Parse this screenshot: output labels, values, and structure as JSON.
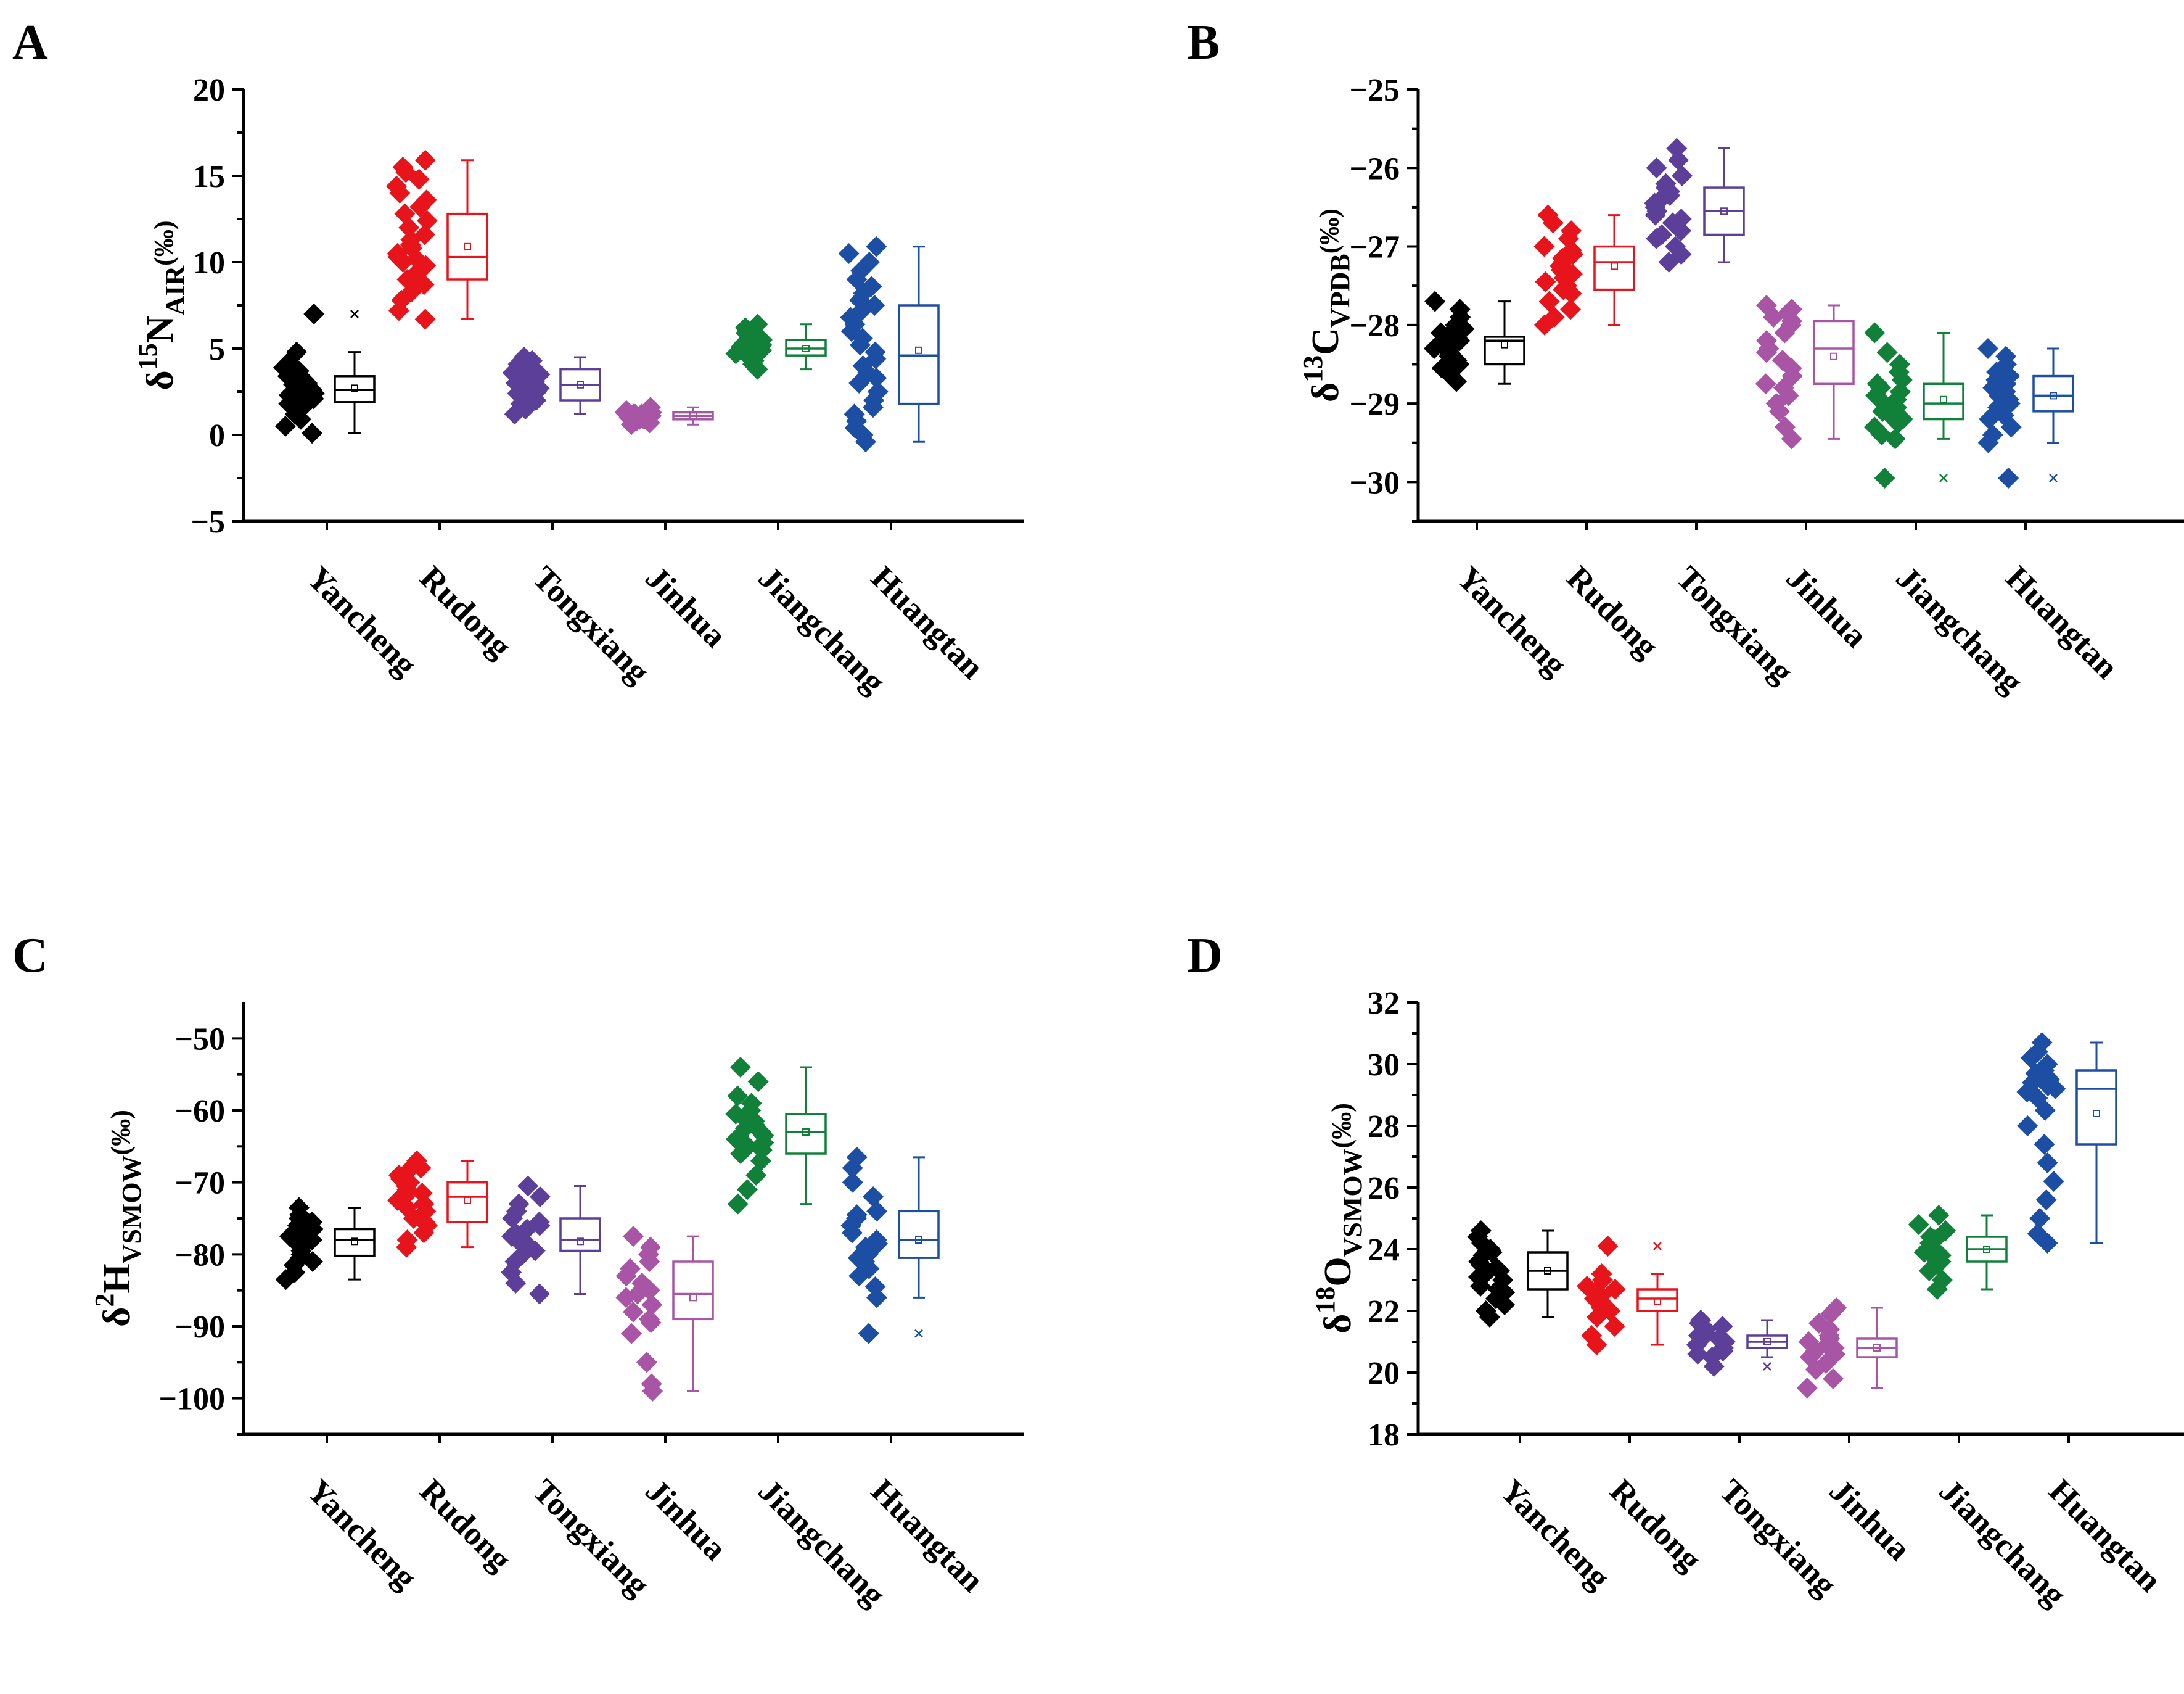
{
  "figure": {
    "panels": [
      "A",
      "B",
      "C",
      "D"
    ]
  },
  "chart_data": [
    {
      "panel": "A",
      "type": "box",
      "ylabel": {
        "delta": "δ",
        "sup": "15",
        "base": "N",
        "sub": "AIR",
        "unit": "(‰)"
      },
      "ylim": [
        -5,
        20
      ],
      "yticks": [
        -5,
        0,
        5,
        10,
        15,
        20
      ],
      "ytick_labels": [
        "−5",
        "0",
        "5",
        "10",
        "15",
        "20"
      ],
      "categories": [
        "Yancheng",
        "Rudong",
        "Tongxiang",
        "Jinhua",
        "Jiangchang",
        "Huangtan"
      ],
      "colors": [
        "#000000",
        "#e8141c",
        "#5b3f98",
        "#a855a6",
        "#11813a",
        "#1c4fa4"
      ],
      "groups": [
        {
          "name": "Yancheng",
          "min": 0.1,
          "q1": 1.9,
          "median": 2.6,
          "q3": 3.4,
          "max": 4.8,
          "mean": 2.7,
          "outliers": [
            7.0
          ],
          "points": [
            0.1,
            0.5,
            0.9,
            1.2,
            1.5,
            1.6,
            1.8,
            1.9,
            2.0,
            2.1,
            2.2,
            2.3,
            2.4,
            2.5,
            2.6,
            2.6,
            2.7,
            2.8,
            2.9,
            3.0,
            3.1,
            3.2,
            3.3,
            3.4,
            3.5,
            3.7,
            3.9,
            4.2,
            4.8,
            7.0
          ]
        },
        {
          "name": "Rudong",
          "min": 6.7,
          "q1": 9.0,
          "median": 10.3,
          "q3": 12.8,
          "max": 15.9,
          "mean": 10.9,
          "outliers": [],
          "points": [
            6.7,
            7.2,
            7.8,
            8.3,
            8.7,
            9.0,
            9.2,
            9.5,
            9.8,
            10.0,
            10.2,
            10.3,
            10.5,
            10.8,
            11.0,
            11.3,
            11.6,
            12.0,
            12.4,
            12.8,
            13.2,
            13.6,
            14.0,
            14.4,
            14.8,
            15.2,
            15.5,
            15.9
          ]
        },
        {
          "name": "Tongxiang",
          "min": 1.2,
          "q1": 2.0,
          "median": 2.9,
          "q3": 3.8,
          "max": 4.5,
          "mean": 2.9,
          "outliers": [],
          "points": [
            1.2,
            1.5,
            1.8,
            2.0,
            2.2,
            2.4,
            2.5,
            2.7,
            2.8,
            2.9,
            3.0,
            3.1,
            3.2,
            3.3,
            3.4,
            3.5,
            3.6,
            3.7,
            3.8,
            3.9,
            4.0,
            4.1,
            4.3,
            4.5
          ]
        },
        {
          "name": "Jinhua",
          "min": 0.6,
          "q1": 0.9,
          "median": 1.1,
          "q3": 1.3,
          "max": 1.6,
          "mean": 1.1,
          "outliers": [],
          "points": [
            0.6,
            0.7,
            0.8,
            0.9,
            0.9,
            1.0,
            1.0,
            1.0,
            1.1,
            1.1,
            1.1,
            1.2,
            1.2,
            1.2,
            1.3,
            1.3,
            1.4,
            1.5,
            1.6
          ]
        },
        {
          "name": "Jiangchang",
          "min": 3.8,
          "q1": 4.6,
          "median": 5.0,
          "q3": 5.5,
          "max": 6.4,
          "mean": 5.0,
          "outliers": [],
          "points": [
            3.8,
            4.1,
            4.3,
            4.5,
            4.6,
            4.7,
            4.8,
            4.9,
            5.0,
            5.0,
            5.1,
            5.1,
            5.2,
            5.3,
            5.4,
            5.5,
            5.6,
            5.7,
            5.8,
            5.9,
            6.0,
            6.2,
            6.4
          ]
        },
        {
          "name": "Huangtan",
          "min": -0.4,
          "q1": 1.8,
          "median": 4.6,
          "q3": 7.5,
          "max": 10.9,
          "mean": 4.9,
          "outliers": [],
          "points": [
            -0.4,
            0.0,
            0.4,
            0.8,
            1.2,
            1.6,
            2.0,
            2.5,
            3.0,
            3.3,
            3.6,
            4.0,
            4.4,
            4.8,
            5.2,
            5.6,
            6.0,
            6.4,
            6.8,
            7.2,
            7.5,
            7.8,
            8.2,
            8.6,
            9.0,
            9.5,
            10.0,
            10.5,
            10.9
          ]
        }
      ]
    },
    {
      "panel": "B",
      "type": "box",
      "ylabel": {
        "delta": "δ",
        "sup": "13",
        "base": "C",
        "sub": "VPDB",
        "unit": "(‰)"
      },
      "ylim": [
        -30.5,
        -25
      ],
      "yticks": [
        -30,
        -29,
        -28,
        -27,
        -26,
        -25
      ],
      "ytick_labels": [
        "−30",
        "−29",
        "−28",
        "−27",
        "−26",
        "−25"
      ],
      "categories": [
        "Yancheng",
        "Rudong",
        "Tongxiang",
        "Jinhua",
        "Jiangchang",
        "Huangtan"
      ],
      "colors": [
        "#000000",
        "#e8141c",
        "#5b3f98",
        "#a855a6",
        "#11813a",
        "#1c4fa4"
      ],
      "groups": [
        {
          "name": "Yancheng",
          "min": -28.75,
          "q1": -28.5,
          "median": -28.2,
          "q3": -28.15,
          "max": -27.7,
          "mean": -28.25,
          "outliers": [],
          "points": [
            -28.72,
            -28.65,
            -28.6,
            -28.55,
            -28.5,
            -28.45,
            -28.4,
            -28.38,
            -28.35,
            -28.3,
            -28.28,
            -28.25,
            -28.22,
            -28.2,
            -28.18,
            -28.15,
            -28.1,
            -28.05,
            -28.0,
            -27.9,
            -27.8,
            -27.7
          ]
        },
        {
          "name": "Rudong",
          "min": -28.0,
          "q1": -27.55,
          "median": -27.2,
          "q3": -27.0,
          "max": -26.6,
          "mean": -27.25,
          "outliers": [],
          "points": [
            -28.0,
            -27.9,
            -27.8,
            -27.7,
            -27.6,
            -27.55,
            -27.5,
            -27.45,
            -27.4,
            -27.35,
            -27.3,
            -27.25,
            -27.2,
            -27.15,
            -27.1,
            -27.05,
            -27.0,
            -26.9,
            -26.8,
            -26.7,
            -26.6
          ]
        },
        {
          "name": "Tongxiang",
          "min": -27.2,
          "q1": -26.85,
          "median": -26.55,
          "q3": -26.25,
          "max": -25.75,
          "mean": -26.55,
          "outliers": [],
          "points": [
            -27.2,
            -27.1,
            -27.0,
            -26.9,
            -26.85,
            -26.8,
            -26.7,
            -26.65,
            -26.6,
            -26.55,
            -26.5,
            -26.45,
            -26.4,
            -26.35,
            -26.3,
            -26.25,
            -26.2,
            -26.1,
            -26.0,
            -25.9,
            -25.75
          ]
        },
        {
          "name": "Jinhua",
          "min": -29.45,
          "q1": -28.75,
          "median": -28.3,
          "q3": -27.95,
          "max": -27.75,
          "mean": -28.4,
          "outliers": [],
          "points": [
            -29.45,
            -29.3,
            -29.1,
            -29.0,
            -28.9,
            -28.8,
            -28.75,
            -28.65,
            -28.55,
            -28.45,
            -28.35,
            -28.3,
            -28.2,
            -28.1,
            -28.0,
            -27.95,
            -27.9,
            -27.85,
            -27.8,
            -27.75
          ]
        },
        {
          "name": "Jiangchang",
          "min": -29.45,
          "q1": -29.2,
          "median": -29.0,
          "q3": -28.75,
          "max": -28.1,
          "mean": -28.95,
          "outliers": [
            -29.95
          ],
          "points": [
            -29.95,
            -29.45,
            -29.4,
            -29.3,
            -29.25,
            -29.2,
            -29.15,
            -29.1,
            -29.05,
            -29.0,
            -28.95,
            -28.9,
            -28.85,
            -28.8,
            -28.75,
            -28.7,
            -28.6,
            -28.5,
            -28.35,
            -28.1
          ]
        },
        {
          "name": "Huangtan",
          "min": -29.5,
          "q1": -29.1,
          "median": -28.9,
          "q3": -28.65,
          "max": -28.3,
          "mean": -28.9,
          "outliers": [
            -29.95
          ],
          "points": [
            -29.95,
            -29.5,
            -29.4,
            -29.3,
            -29.2,
            -29.15,
            -29.1,
            -29.05,
            -29.0,
            -28.95,
            -28.9,
            -28.85,
            -28.8,
            -28.75,
            -28.7,
            -28.65,
            -28.6,
            -28.5,
            -28.4,
            -28.3
          ]
        }
      ]
    },
    {
      "panel": "C",
      "type": "box",
      "ylabel": {
        "delta": "δ",
        "sup": "2",
        "base": "H",
        "sub": "VSMOW",
        "unit": "(‰)"
      },
      "ylim": [
        -105,
        -45
      ],
      "yticks": [
        -100,
        -90,
        -80,
        -70,
        -60,
        -50
      ],
      "ytick_labels": [
        "−100",
        "−90",
        "−80",
        "−70",
        "−60",
        "−50"
      ],
      "categories": [
        "Yancheng",
        "Rudong",
        "Tongxiang",
        "Jinhua",
        "Jiangchang",
        "Huangtan"
      ],
      "colors": [
        "#000000",
        "#e8141c",
        "#5b3f98",
        "#a855a6",
        "#11813a",
        "#1c4fa4"
      ],
      "groups": [
        {
          "name": "Yancheng",
          "min": -83.5,
          "q1": -80.2,
          "median": -78.0,
          "q3": -76.5,
          "max": -73.5,
          "mean": -78.2,
          "outliers": [],
          "points": [
            -83.5,
            -82.5,
            -81.5,
            -81.0,
            -80.5,
            -80.0,
            -79.5,
            -79.0,
            -78.5,
            -78.2,
            -78.0,
            -77.8,
            -77.5,
            -77.2,
            -77.0,
            -76.5,
            -76.0,
            -75.5,
            -75.0,
            -74.5,
            -73.5
          ]
        },
        {
          "name": "Rudong",
          "min": -79.0,
          "q1": -75.5,
          "median": -72.0,
          "q3": -70.0,
          "max": -67.0,
          "mean": -72.5,
          "outliers": [],
          "points": [
            -79.0,
            -78.0,
            -77.0,
            -76.0,
            -75.5,
            -75.0,
            -74.0,
            -73.5,
            -73.0,
            -72.5,
            -72.0,
            -71.5,
            -71.0,
            -70.5,
            -70.0,
            -69.5,
            -69.0,
            -68.5,
            -68.0,
            -67.0
          ]
        },
        {
          "name": "Tongxiang",
          "min": -85.5,
          "q1": -79.5,
          "median": -78.0,
          "q3": -75.0,
          "max": -70.5,
          "mean": -78.2,
          "outliers": [],
          "points": [
            -85.5,
            -84.0,
            -82.5,
            -81.0,
            -80.0,
            -79.5,
            -79.0,
            -78.5,
            -78.0,
            -77.5,
            -77.0,
            -76.5,
            -76.0,
            -75.5,
            -75.0,
            -74.0,
            -73.0,
            -72.0,
            -70.5
          ]
        },
        {
          "name": "Jinhua",
          "min": -99.0,
          "q1": -89.0,
          "median": -85.5,
          "q3": -81.0,
          "max": -77.5,
          "mean": -86.0,
          "outliers": [],
          "points": [
            -99.0,
            -98.0,
            -95.0,
            -91.0,
            -89.5,
            -89.0,
            -88.0,
            -87.0,
            -86.0,
            -85.5,
            -85.0,
            -84.0,
            -83.0,
            -82.0,
            -81.0,
            -80.0,
            -79.0,
            -77.5
          ]
        },
        {
          "name": "Jiangchang",
          "min": -73.0,
          "q1": -66.0,
          "median": -63.0,
          "q3": -60.5,
          "max": -54.0,
          "mean": -63.0,
          "outliers": [],
          "points": [
            -73.0,
            -71.0,
            -69.0,
            -67.0,
            -66.0,
            -65.5,
            -65.0,
            -64.5,
            -64.0,
            -63.5,
            -63.0,
            -62.5,
            -62.0,
            -61.5,
            -61.0,
            -60.5,
            -60.0,
            -59.0,
            -58.0,
            -56.0,
            -54.0
          ]
        },
        {
          "name": "Huangtan",
          "min": -86.0,
          "q1": -80.5,
          "median": -78.0,
          "q3": -74.0,
          "max": -66.5,
          "mean": -78.0,
          "outliers": [
            -91.0
          ],
          "points": [
            -91.0,
            -86.0,
            -84.5,
            -83.0,
            -82.0,
            -81.0,
            -80.5,
            -80.0,
            -79.0,
            -78.5,
            -78.0,
            -77.0,
            -76.0,
            -75.0,
            -74.5,
            -74.0,
            -72.0,
            -70.0,
            -68.0,
            -66.5
          ]
        }
      ]
    },
    {
      "panel": "D",
      "type": "box",
      "ylabel": {
        "delta": "δ",
        "sup": "18",
        "base": "O",
        "sub": "VSMOW",
        "unit": "(‰)"
      },
      "ylim": [
        18,
        32
      ],
      "yticks": [
        18,
        20,
        22,
        24,
        26,
        28,
        30,
        32
      ],
      "ytick_labels": [
        "18",
        "20",
        "22",
        "24",
        "26",
        "28",
        "30",
        "32"
      ],
      "categories": [
        "Yancheng",
        "Rudong",
        "Tongxiang",
        "Jinhua",
        "Jiangchang",
        "Huangtan"
      ],
      "colors": [
        "#000000",
        "#e8141c",
        "#5b3f98",
        "#a855a6",
        "#11813a",
        "#1c4fa4"
      ],
      "groups": [
        {
          "name": "Yancheng",
          "min": 21.8,
          "q1": 22.7,
          "median": 23.3,
          "q3": 23.9,
          "max": 24.6,
          "mean": 23.3,
          "outliers": [],
          "points": [
            21.8,
            22.0,
            22.2,
            22.4,
            22.6,
            22.7,
            22.8,
            23.0,
            23.1,
            23.2,
            23.3,
            23.4,
            23.5,
            23.6,
            23.8,
            23.9,
            24.0,
            24.2,
            24.4,
            24.6
          ]
        },
        {
          "name": "Rudong",
          "min": 20.9,
          "q1": 22.0,
          "median": 22.4,
          "q3": 22.7,
          "max": 23.2,
          "mean": 22.3,
          "outliers": [
            24.1
          ],
          "points": [
            20.9,
            21.2,
            21.5,
            21.8,
            22.0,
            22.1,
            22.2,
            22.3,
            22.4,
            22.5,
            22.6,
            22.7,
            22.8,
            23.0,
            23.2,
            24.1
          ]
        },
        {
          "name": "Tongxiang",
          "min": 20.5,
          "q1": 20.8,
          "median": 21.0,
          "q3": 21.2,
          "max": 21.7,
          "mean": 21.0,
          "outliers": [
            20.2
          ],
          "points": [
            20.2,
            20.5,
            20.6,
            20.7,
            20.8,
            20.9,
            21.0,
            21.0,
            21.1,
            21.1,
            21.2,
            21.3,
            21.4,
            21.5,
            21.6,
            21.7
          ]
        },
        {
          "name": "Jinhua",
          "min": 19.5,
          "q1": 20.5,
          "median": 20.8,
          "q3": 21.1,
          "max": 22.1,
          "mean": 20.8,
          "outliers": [],
          "points": [
            19.5,
            19.8,
            20.1,
            20.3,
            20.5,
            20.6,
            20.7,
            20.8,
            20.9,
            21.0,
            21.1,
            21.2,
            21.4,
            21.6,
            21.9,
            22.1
          ]
        },
        {
          "name": "Jiangchang",
          "min": 22.7,
          "q1": 23.6,
          "median": 24.0,
          "q3": 24.4,
          "max": 25.1,
          "mean": 24.0,
          "outliers": [],
          "points": [
            22.7,
            23.0,
            23.3,
            23.5,
            23.6,
            23.7,
            23.8,
            23.9,
            24.0,
            24.1,
            24.2,
            24.3,
            24.4,
            24.6,
            24.8,
            25.1
          ]
        },
        {
          "name": "Huangtan",
          "min": 24.2,
          "q1": 27.4,
          "median": 29.2,
          "q3": 29.8,
          "max": 30.7,
          "mean": 28.4,
          "outliers": [],
          "points": [
            24.2,
            24.5,
            25.0,
            25.6,
            26.2,
            26.8,
            27.4,
            28.0,
            28.5,
            28.9,
            29.1,
            29.2,
            29.3,
            29.4,
            29.5,
            29.6,
            29.7,
            29.8,
            30.0,
            30.2,
            30.4,
            30.7
          ]
        }
      ]
    }
  ]
}
